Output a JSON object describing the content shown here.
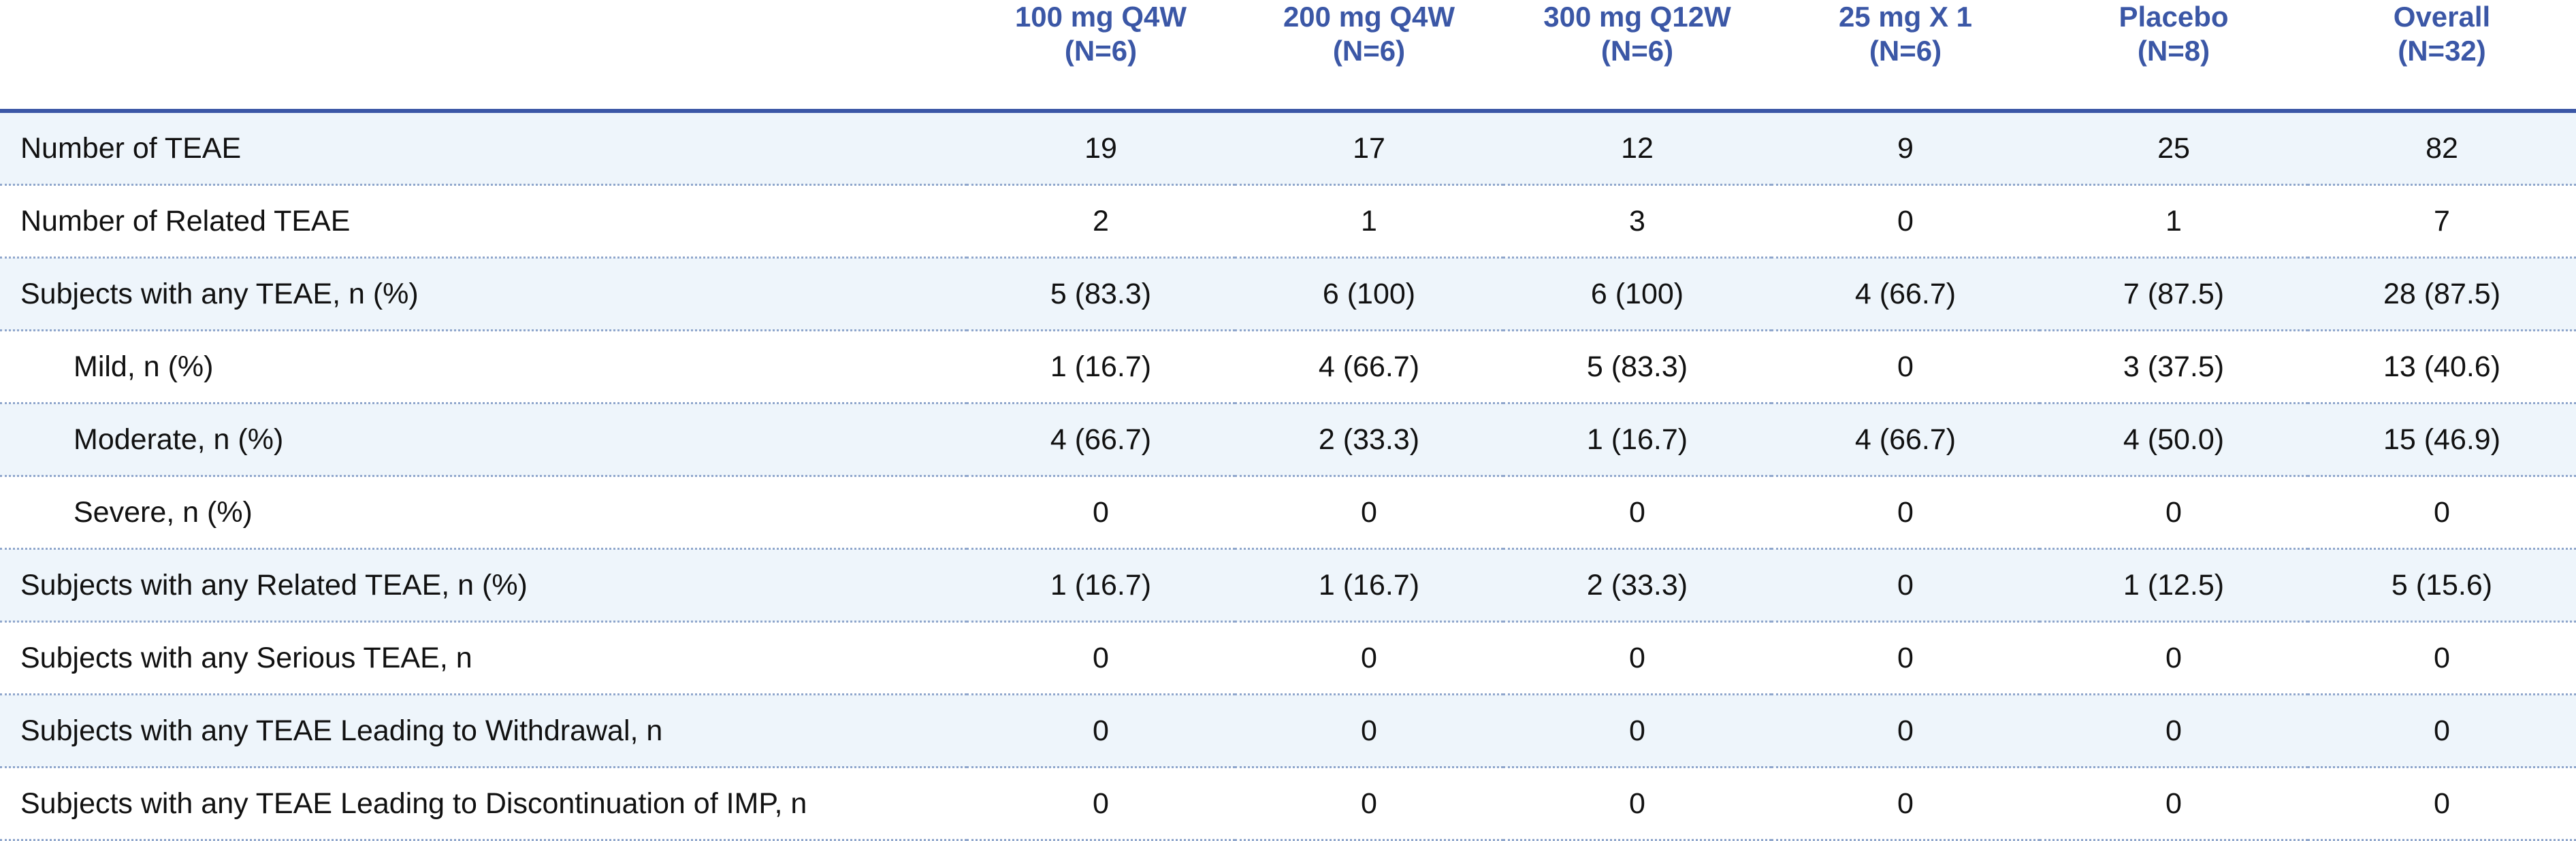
{
  "table": {
    "columns": [
      {
        "name": "100 mg Q4W",
        "n": "(N=6)"
      },
      {
        "name": "200 mg Q4W",
        "n": "(N=6)"
      },
      {
        "name": "300 mg Q12W",
        "n": "(N=6)"
      },
      {
        "name": "25 mg X 1",
        "n": "(N=6)"
      },
      {
        "name": "Placebo",
        "n": "(N=8)"
      },
      {
        "name": "Overall",
        "n": "(N=32)"
      }
    ],
    "rows": [
      {
        "label": "Number of TEAE",
        "indent": false,
        "values": [
          19,
          17,
          12,
          9,
          25,
          82
        ]
      },
      {
        "label": "Number of Related TEAE",
        "indent": false,
        "values": [
          2,
          1,
          3,
          0,
          1,
          7
        ]
      },
      {
        "label": "Subjects with any TEAE, n (%)",
        "indent": false,
        "values": [
          "5 (83.3)",
          "6 (100)",
          "6 (100)",
          "4 (66.7)",
          "7 (87.5)",
          "28 (87.5)"
        ]
      },
      {
        "label": "Mild, n (%)",
        "indent": true,
        "values": [
          "1 (16.7)",
          "4 (66.7)",
          "5 (83.3)",
          0,
          "3 (37.5)",
          "13 (40.6)"
        ]
      },
      {
        "label": "Moderate, n (%)",
        "indent": true,
        "values": [
          "4 (66.7)",
          "2 (33.3)",
          "1 (16.7)",
          "4 (66.7)",
          "4 (50.0)",
          "15 (46.9)"
        ]
      },
      {
        "label": "Severe, n (%)",
        "indent": true,
        "values": [
          0,
          0,
          0,
          0,
          0,
          0
        ]
      },
      {
        "label": "Subjects with any Related TEAE, n (%)",
        "indent": false,
        "values": [
          "1 (16.7)",
          "1 (16.7)",
          "2 (33.3)",
          0,
          "1 (12.5)",
          "5 (15.6)"
        ]
      },
      {
        "label": "Subjects with any Serious TEAE, n",
        "indent": false,
        "values": [
          0,
          0,
          0,
          0,
          0,
          0
        ]
      },
      {
        "label": "Subjects with any TEAE Leading to Withdrawal, n",
        "indent": false,
        "values": [
          0,
          0,
          0,
          0,
          0,
          0
        ]
      },
      {
        "label": "Subjects with any TEAE Leading to Discontinuation of IMP, n",
        "indent": false,
        "values": [
          0,
          0,
          0,
          0,
          0,
          0
        ]
      }
    ]
  }
}
